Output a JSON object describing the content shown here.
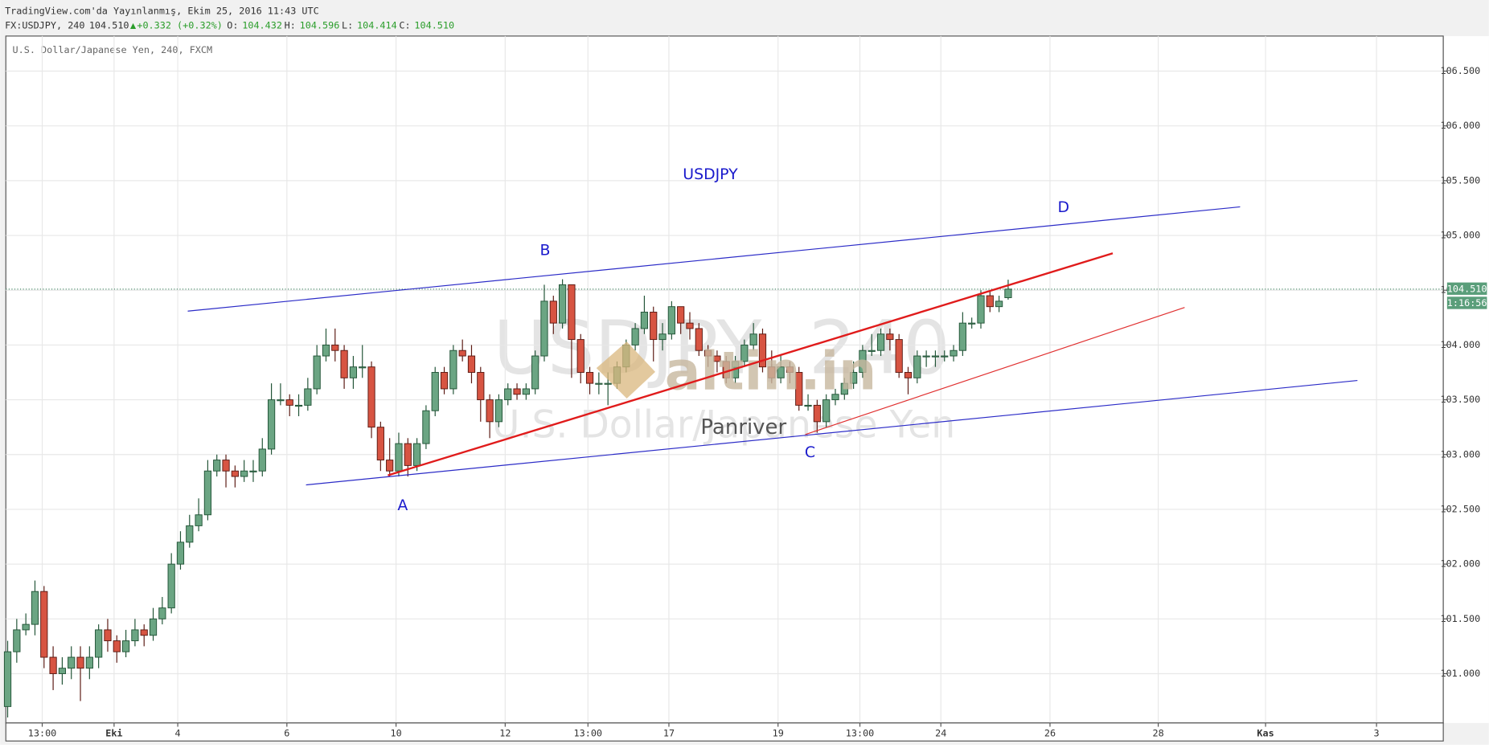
{
  "header": {
    "published": "TradingView.com'da Yayınlanmış, Ekim 25, 2016 11:43 UTC",
    "symbol": "FX:USDJPY, 240",
    "price": "104.510",
    "arrow": "▲",
    "change": "+0.332 (+0.32%)",
    "ohlc": [
      {
        "label": "O:",
        "value": "104.432"
      },
      {
        "label": "H:",
        "value": "104.596"
      },
      {
        "label": "L:",
        "value": "104.414"
      },
      {
        "label": "C:",
        "value": "104.510"
      }
    ]
  },
  "chart_data": {
    "type": "candlestick",
    "legend": "U.S. Dollar/Japanese Yen, 240, FXCM",
    "watermark": {
      "title": "USDJPY, 240",
      "subtitle": "U.S. Dollar/Japanese Yen",
      "logo": "altin.in",
      "author": "Panriver"
    },
    "up_color": "#6ba583",
    "up_border": "#225437",
    "down_color": "#d75442",
    "down_border": "#5b1a13",
    "grid": true,
    "open": [
      100.7,
      101.2,
      101.4,
      101.45,
      101.75,
      101.15,
      101.0,
      101.05,
      101.15,
      101.05,
      101.15,
      101.4,
      101.3,
      101.2,
      101.3,
      101.4,
      101.35,
      101.5,
      101.6,
      102.0,
      102.2,
      102.35,
      102.45,
      102.85,
      102.95,
      102.85,
      102.8,
      102.85,
      102.85,
      103.05,
      103.5,
      103.5,
      103.45,
      103.45,
      103.6,
      103.9,
      104.0,
      103.95,
      103.7,
      103.8,
      103.8,
      103.25,
      102.95,
      102.85,
      103.1,
      102.9,
      103.1,
      103.4,
      103.75,
      103.6,
      103.95,
      103.9,
      103.75,
      103.5,
      103.3,
      103.5,
      103.6,
      103.55,
      103.6,
      103.9,
      104.4,
      104.2,
      104.55,
      104.05,
      103.75,
      103.65,
      103.65,
      103.65,
      103.8,
      104.0,
      104.15,
      104.3,
      104.05,
      104.1,
      104.35,
      104.2,
      104.15,
      103.95,
      103.9,
      103.85,
      103.7,
      103.85,
      104.0,
      104.1,
      103.8,
      103.7,
      103.8,
      103.75,
      103.45,
      103.45,
      103.3,
      103.5,
      103.55,
      103.65,
      103.75,
      103.95,
      103.95,
      104.1,
      104.05,
      103.75,
      103.7,
      103.9,
      103.9,
      103.9,
      103.9,
      103.95,
      104.2,
      104.2,
      104.45,
      104.35,
      104.432
    ],
    "high": [
      101.3,
      101.5,
      101.55,
      101.85,
      101.8,
      101.25,
      101.15,
      101.25,
      101.25,
      101.25,
      101.45,
      101.5,
      101.35,
      101.4,
      101.5,
      101.45,
      101.6,
      101.7,
      102.1,
      102.3,
      102.45,
      102.6,
      102.95,
      103.0,
      103.0,
      102.9,
      102.95,
      102.95,
      103.15,
      103.65,
      103.65,
      103.55,
      103.55,
      103.7,
      104.0,
      104.15,
      104.15,
      104.0,
      103.9,
      104.0,
      103.85,
      103.3,
      103.15,
      103.2,
      103.15,
      103.15,
      103.45,
      103.8,
      103.8,
      104.0,
      104.05,
      104.0,
      103.8,
      103.55,
      103.55,
      103.65,
      103.65,
      103.65,
      103.95,
      104.55,
      104.45,
      104.6,
      104.55,
      104.1,
      103.8,
      103.75,
      103.75,
      103.85,
      104.05,
      104.2,
      104.45,
      104.35,
      104.2,
      104.4,
      104.35,
      104.3,
      104.2,
      104.0,
      103.95,
      103.9,
      103.9,
      104.05,
      104.2,
      104.15,
      103.95,
      103.9,
      103.85,
      103.8,
      103.55,
      103.5,
      103.55,
      103.6,
      103.7,
      103.85,
      104.0,
      104.1,
      104.15,
      104.15,
      104.1,
      103.8,
      103.95,
      103.95,
      103.95,
      103.95,
      104.0,
      104.3,
      104.25,
      104.5,
      104.5,
      104.45,
      104.596
    ],
    "low": [
      100.6,
      101.1,
      101.35,
      101.35,
      101.05,
      100.85,
      100.9,
      100.95,
      100.75,
      100.95,
      101.05,
      101.2,
      101.1,
      101.15,
      101.25,
      101.25,
      101.3,
      101.45,
      101.55,
      101.95,
      102.15,
      102.3,
      102.4,
      102.8,
      102.7,
      102.7,
      102.75,
      102.75,
      102.8,
      103.0,
      103.45,
      103.35,
      103.35,
      103.4,
      103.55,
      103.85,
      103.85,
      103.6,
      103.6,
      103.7,
      103.15,
      102.85,
      102.8,
      102.8,
      102.8,
      102.85,
      103.05,
      103.35,
      103.55,
      103.55,
      103.85,
      103.65,
      103.3,
      103.15,
      103.25,
      103.45,
      103.5,
      103.5,
      103.55,
      103.85,
      104.1,
      104.15,
      103.7,
      103.65,
      103.55,
      103.55,
      103.45,
      103.6,
      103.75,
      103.95,
      104.1,
      103.85,
      103.95,
      104.05,
      104.1,
      104.05,
      103.9,
      103.8,
      103.75,
      103.65,
      103.65,
      103.8,
      103.95,
      103.75,
      103.65,
      103.65,
      103.65,
      103.4,
      103.4,
      103.2,
      103.25,
      103.45,
      103.5,
      103.6,
      103.7,
      103.9,
      103.9,
      103.95,
      103.7,
      103.55,
      103.65,
      103.8,
      103.8,
      103.85,
      103.85,
      103.9,
      104.15,
      104.15,
      104.3,
      104.3,
      104.414
    ],
    "close": [
      101.2,
      101.4,
      101.45,
      101.75,
      101.15,
      101.0,
      101.05,
      101.15,
      101.05,
      101.15,
      101.4,
      101.3,
      101.2,
      101.3,
      101.4,
      101.35,
      101.5,
      101.6,
      102.0,
      102.2,
      102.35,
      102.45,
      102.85,
      102.95,
      102.85,
      102.8,
      102.85,
      102.85,
      103.05,
      103.5,
      103.5,
      103.45,
      103.45,
      103.6,
      103.9,
      104.0,
      103.95,
      103.7,
      103.8,
      103.8,
      103.25,
      102.95,
      102.85,
      103.1,
      102.9,
      103.1,
      103.4,
      103.75,
      103.6,
      103.95,
      103.9,
      103.75,
      103.5,
      103.3,
      103.5,
      103.6,
      103.55,
      103.6,
      103.9,
      104.4,
      104.2,
      104.55,
      104.05,
      103.75,
      103.65,
      103.65,
      103.65,
      103.8,
      104.0,
      104.15,
      104.3,
      104.05,
      104.1,
      104.35,
      104.2,
      104.15,
      103.95,
      103.9,
      103.85,
      103.7,
      103.85,
      104.0,
      104.1,
      103.8,
      103.7,
      103.8,
      103.75,
      103.45,
      103.45,
      103.3,
      103.5,
      103.55,
      103.65,
      103.75,
      103.95,
      103.95,
      104.1,
      104.05,
      103.75,
      103.7,
      103.9,
      103.9,
      103.9,
      103.9,
      103.95,
      104.2,
      104.2,
      104.45,
      104.35,
      104.4,
      104.51
    ],
    "xlim": [
      -0.2,
      157.84
    ],
    "ylim": [
      100.55,
      106.82
    ],
    "xticks": [
      {
        "value": 3.8,
        "label": "13:00"
      },
      {
        "value": 11.7,
        "label": "Eki"
      },
      {
        "value": 18.7,
        "label": "4"
      },
      {
        "value": 30.7,
        "label": "6"
      },
      {
        "value": 42.7,
        "label": "10"
      },
      {
        "value": 54.7,
        "label": "12"
      },
      {
        "value": 63.8,
        "label": "13:00"
      },
      {
        "value": 72.7,
        "label": "17"
      },
      {
        "value": 84.7,
        "label": "19"
      },
      {
        "value": 93.7,
        "label": "13:00"
      },
      {
        "value": 102.6,
        "label": "24"
      },
      {
        "value": 114.6,
        "label": "26"
      },
      {
        "value": 126.5,
        "label": "28"
      },
      {
        "value": 138.3,
        "label": "Kas"
      },
      {
        "value": 150.5,
        "label": "3"
      }
    ],
    "yticks": [
      {
        "value": 101,
        "label": "101.000"
      },
      {
        "value": 101.5,
        "label": "101.500"
      },
      {
        "value": 102,
        "label": "102.000"
      },
      {
        "value": 102.5,
        "label": "102.500"
      },
      {
        "value": 103,
        "label": "103.000"
      },
      {
        "value": 103.5,
        "label": "103.500"
      },
      {
        "value": 104,
        "label": "104.000"
      },
      {
        "value": 104.5,
        "label": "104.500"
      },
      {
        "value": 105,
        "label": "105.000"
      },
      {
        "value": 105.5,
        "label": "105.500"
      },
      {
        "value": 106,
        "label": "106.000"
      },
      {
        "value": 106.5,
        "label": "106.500"
      }
    ],
    "last_price": {
      "value": 104.51,
      "label": "104.510",
      "countdown": "1:16:56"
    },
    "drawings": [
      {
        "x": [
          19.8,
          135.5
        ],
        "y": [
          104.309,
          105.261
        ],
        "color": "#2b2bc7",
        "width": 1
      },
      {
        "x": [
          32.8,
          148.4
        ],
        "y": [
          102.723,
          103.676
        ],
        "color": "#2b2bc7",
        "width": 1
      },
      {
        "x": [
          41.8,
          121.5
        ],
        "y": [
          102.81,
          104.837
        ],
        "color": "#e01b1b",
        "width": 2
      },
      {
        "x": [
          87.7,
          129.4
        ],
        "y": [
          103.183,
          104.343
        ],
        "color": "#e03030",
        "width": 1
      }
    ],
    "annotations": [
      "USDJPY",
      "A",
      "B",
      "C",
      "D"
    ],
    "annotation_color": "#1a1acc"
  }
}
